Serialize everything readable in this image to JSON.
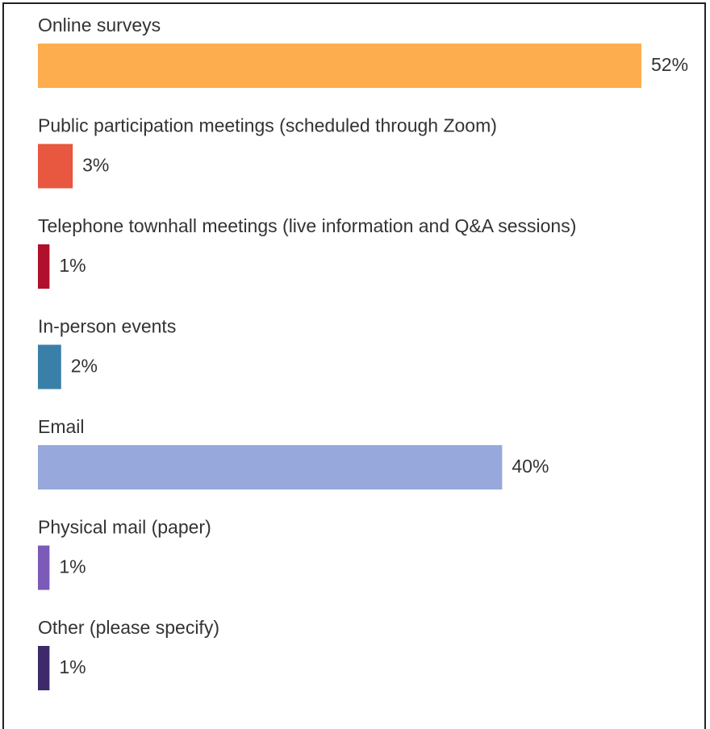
{
  "chart_data": {
    "type": "bar",
    "categories": [
      "Online surveys",
      "Public participation meetings (scheduled through Zoom)",
      "Telephone townhall meetings (live information and Q&A sessions)",
      "In-person events",
      "Email",
      "Physical mail (paper)",
      "Other (please specify)"
    ],
    "values": [
      52,
      3,
      1,
      2,
      40,
      1,
      1
    ],
    "value_labels": [
      "52%",
      "3%",
      "1%",
      "2%",
      "40%",
      "1%",
      "1%"
    ],
    "colors": [
      "#fdad4e",
      "#e8573f",
      "#b0102b",
      "#3a7fa8",
      "#97a8dc",
      "#7b5ab8",
      "#3d2a6b"
    ]
  }
}
